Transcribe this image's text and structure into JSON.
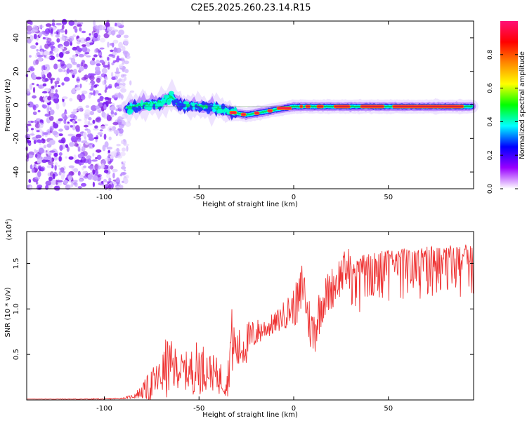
{
  "title": "C2E5.2025.260.23.14.R15",
  "chart_data": [
    {
      "type": "heatmap",
      "title": "C2E5.2025.260.23.14.R15",
      "xlabel": "Height of straight line (km)",
      "ylabel": "Frequency (Hz)",
      "xlim": [
        -141,
        95
      ],
      "ylim": [
        -50,
        50
      ],
      "x_ticks": [
        -100,
        -50,
        0,
        50
      ],
      "x_tick_labels": [
        "-100",
        "-50",
        "0",
        "50"
      ],
      "y_ticks": [
        -40,
        -20,
        0,
        20,
        40
      ],
      "y_tick_labels": [
        "-40",
        "-20",
        "0",
        "20",
        "40"
      ],
      "ridge_x": [
        -88,
        -80,
        -70,
        -65,
        -60,
        -50,
        -40,
        -35,
        -30,
        -25,
        -20,
        -10,
        -5,
        0,
        5,
        10,
        20,
        30,
        40,
        50,
        60,
        70,
        80,
        94
      ],
      "ridge_y": [
        -2,
        0,
        1,
        5,
        0,
        -1,
        -2,
        -4,
        -5,
        -6,
        -5,
        -3,
        -2,
        -1,
        -1,
        -1,
        -1,
        -1,
        -1,
        -1,
        -1,
        -1,
        -1,
        -1
      ],
      "colorbar": {
        "label": "Normalized spectral amplitude",
        "ticks": [
          0.0,
          0.2,
          0.4,
          0.6,
          0.8
        ],
        "tick_labels": [
          "0.0",
          "0.2",
          "0.4",
          "0.6",
          "0.8"
        ],
        "colors": [
          "#ffffff",
          "#9900ff",
          "#0000ff",
          "#00ffff",
          "#00ff00",
          "#ffff00",
          "#ff8800",
          "#ff0000",
          "#ff1177"
        ]
      }
    },
    {
      "type": "line",
      "xlabel": "Height of straight line (km)",
      "ylabel": "SNR (10 * v/v)",
      "exponent_label": "(x10",
      "exponent_power": "4",
      "exponent_close": ")",
      "xlim": [
        -141,
        95
      ],
      "ylim": [
        0,
        1.85
      ],
      "x_ticks": [
        -100,
        -50,
        0,
        50
      ],
      "x_tick_labels": [
        "-100",
        "-50",
        "0",
        "50"
      ],
      "y_ticks": [
        0.5,
        1.0,
        1.5
      ],
      "y_tick_labels": [
        "0.5",
        "1.0",
        "1.5"
      ],
      "line_color": "#ee3333",
      "x": [
        -141,
        -100,
        -90,
        -85,
        -80,
        -75,
        -70,
        -67,
        -60,
        -55,
        -50,
        -45,
        -40,
        -35,
        -33,
        -30,
        -25,
        -20,
        -15,
        -10,
        -5,
        0,
        3,
        5,
        7,
        10,
        15,
        20,
        25,
        30,
        35,
        40,
        50,
        60,
        70,
        80,
        90,
        95
      ],
      "y": [
        0.01,
        0.01,
        0.02,
        0.04,
        0.1,
        0.18,
        0.28,
        0.4,
        0.35,
        0.33,
        0.4,
        0.35,
        0.28,
        0.2,
        0.7,
        0.55,
        0.65,
        0.75,
        0.8,
        0.85,
        0.95,
        1.05,
        1.1,
        1.35,
        1.0,
        0.75,
        1.1,
        1.25,
        1.4,
        1.48,
        1.55,
        1.6,
        1.62,
        1.65,
        1.66,
        1.67,
        1.68,
        1.68
      ],
      "spread": [
        0,
        0.01,
        0.01,
        0.03,
        0.1,
        0.25,
        0.25,
        0.45,
        0.22,
        0.3,
        0.4,
        0.25,
        0.25,
        0.2,
        0.5,
        0.3,
        0.3,
        0.2,
        0.15,
        0.15,
        0.2,
        0.25,
        0.4,
        0.4,
        0.3,
        0.4,
        0.3,
        0.3,
        0.3,
        0.3,
        0.3,
        0.25,
        0.28,
        0.28,
        0.28,
        0.28,
        0.3,
        0.3
      ]
    }
  ]
}
